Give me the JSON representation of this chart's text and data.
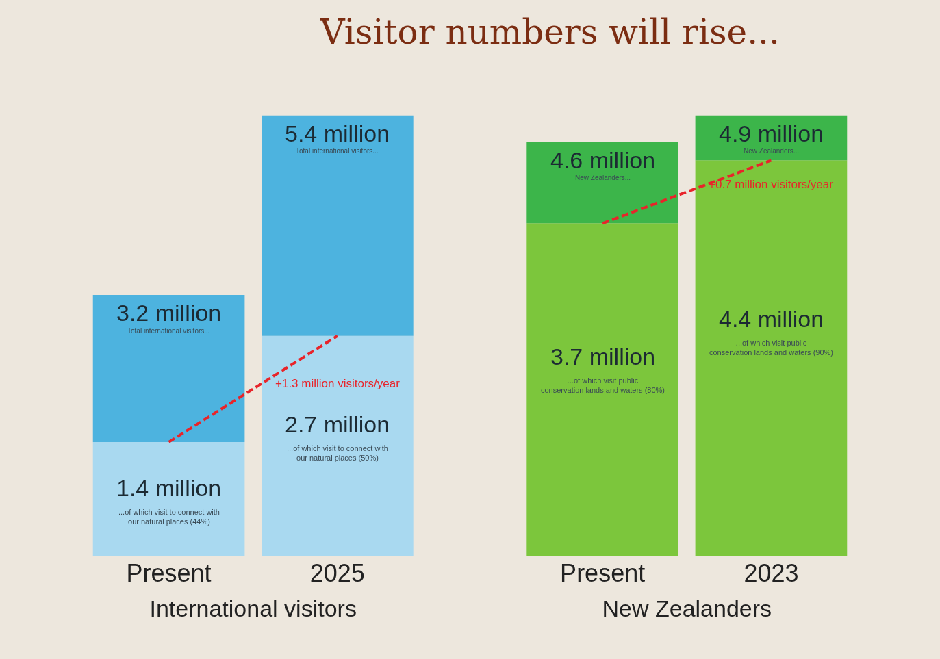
{
  "chart_data": [
    {
      "type": "bar",
      "title": "Visitor numbers will rise...",
      "xlabel": "International visitors",
      "stacked": true,
      "categories": [
        "Present",
        "2025"
      ],
      "tick_labels": "x",
      "series": [
        {
          "color": "#a9d9f0",
          "values": [
            1.4,
            2.7
          ],
          "value_labels": [
            "1.4 million",
            "2.7 million"
          ]
        },
        {
          "color": "#4db3df",
          "values": [
            1.8,
            2.7
          ]
        },
        {
          "type": "line",
          "color": "#e8242a",
          "line_style": "dashed",
          "values": [
            1.4,
            2.7
          ]
        }
      ],
      "totals": [
        "3.2 million",
        "5.4 million"
      ],
      "annotations": [
        "Total international visitors...",
        "Total international visitors...",
        "...of which visit to connect with our natural places (44%)",
        "...of which visit to connect with our natural places (50%)",
        "+1.3 million visitors/year"
      ]
    },
    {
      "type": "bar",
      "xlabel": "New Zealanders",
      "stacked": true,
      "categories": [
        "Present",
        "2023"
      ],
      "tick_labels": "x",
      "series": [
        {
          "color": "#7cc63c",
          "values": [
            3.7,
            4.4
          ],
          "value_labels": [
            "3.7 million",
            "4.4 million"
          ]
        },
        {
          "color": "#3cb54a",
          "values": [
            0.9,
            0.5
          ]
        },
        {
          "type": "line",
          "color": "#e8242a",
          "line_style": "dashed",
          "values": [
            3.7,
            4.4
          ]
        }
      ],
      "totals": [
        "4.6 million",
        "4.9 million"
      ],
      "annotations": [
        "New Zealanders...",
        "New Zealanders...",
        "...of which visit public conservation lands and waters (80%)",
        "...of which visit public conservation lands and waters (90%)",
        "+0.7 million visitors/year"
      ]
    }
  ]
}
